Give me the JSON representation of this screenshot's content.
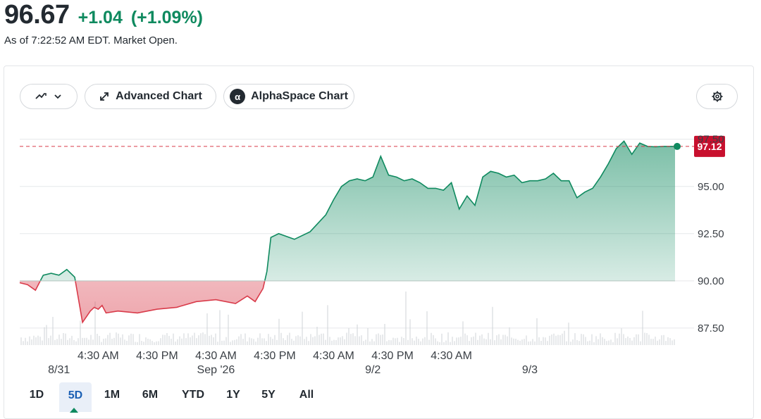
{
  "quote": {
    "price": "96.67",
    "change": "+1.04",
    "change_pct": "(+1.09%)",
    "as_of": "As of 7:22:52 AM EDT. Market Open."
  },
  "toolbar": {
    "chart_type_icon": "chart-type-icon",
    "advanced_label": "Advanced Chart",
    "alpha_label": "AlphaSpace Chart",
    "alpha_logo": "α",
    "settings_icon": "gear-icon"
  },
  "colors": {
    "up": "#0f8a5f",
    "down": "#d93b4a",
    "marker_bg": "#c8102e",
    "grid": "#e6e8ea"
  },
  "ranges": [
    "1D",
    "5D",
    "1M",
    "6M",
    "YTD",
    "1Y",
    "5Y",
    "All"
  ],
  "active_range": "5D",
  "chart_data": {
    "type": "area",
    "previous_close": 90.0,
    "current_marker": "97.12",
    "y_ticks": [
      "95.00",
      "92.50",
      "90.00",
      "87.50"
    ],
    "y_tick_values": [
      95.0,
      92.5,
      90.0,
      87.5
    ],
    "y_partial_label": "97.50",
    "ylim": [
      86.6,
      97.9
    ],
    "x_tick_labels": [
      "4:30 AM",
      "4:30 PM",
      "4:30 AM",
      "4:30 PM",
      "4:30 AM",
      "4:30 PM",
      "4:30 AM"
    ],
    "x_tick_positions": [
      0.2,
      0.35,
      0.5,
      0.65,
      0.8,
      0.95,
      1.1
    ],
    "date_labels": [
      "8/31",
      "Sep '26",
      "9/2",
      "9/3"
    ],
    "date_positions": [
      0.1,
      0.5,
      0.9,
      1.3
    ],
    "x_max": 1.67,
    "series": [
      {
        "x": [
          0.0,
          0.02,
          0.04,
          0.05,
          0.06,
          0.08,
          0.1,
          0.12,
          0.14,
          0.16,
          0.18,
          0.19,
          0.2,
          0.21,
          0.22,
          0.25,
          0.3,
          0.35,
          0.4,
          0.45,
          0.5,
          0.55,
          0.58,
          0.6,
          0.62,
          0.63,
          0.64,
          0.66,
          0.7,
          0.74,
          0.78,
          0.8,
          0.82,
          0.84,
          0.86,
          0.88,
          0.9,
          0.92,
          0.94,
          0.96,
          0.98,
          1.0,
          1.02,
          1.04,
          1.06,
          1.08,
          1.1,
          1.12,
          1.14,
          1.16,
          1.18,
          1.2,
          1.22,
          1.24,
          1.26,
          1.28,
          1.3,
          1.32,
          1.34,
          1.36,
          1.38,
          1.4,
          1.42,
          1.44,
          1.46,
          1.48,
          1.5,
          1.52,
          1.54,
          1.56,
          1.58,
          1.6,
          1.62,
          1.64,
          1.65,
          1.67
        ],
        "y": [
          89.9,
          89.8,
          89.5,
          89.9,
          90.3,
          90.4,
          90.3,
          90.6,
          90.2,
          87.8,
          88.4,
          88.6,
          88.5,
          88.7,
          88.3,
          88.4,
          88.3,
          88.5,
          88.6,
          88.9,
          89.0,
          88.8,
          89.2,
          88.9,
          89.6,
          90.5,
          92.3,
          92.5,
          92.2,
          92.6,
          93.5,
          94.3,
          95.0,
          95.3,
          95.4,
          95.3,
          95.5,
          96.6,
          95.6,
          95.5,
          95.3,
          95.4,
          95.2,
          94.9,
          94.9,
          94.8,
          95.2,
          93.8,
          94.5,
          94.0,
          95.5,
          95.8,
          95.7,
          95.5,
          95.6,
          95.2,
          95.3,
          95.3,
          95.4,
          95.7,
          95.3,
          95.3,
          94.4,
          94.7,
          94.9,
          95.5,
          96.2,
          97.0,
          97.4,
          96.7,
          97.3,
          97.12,
          97.1,
          97.12,
          97.12,
          97.12
        ]
      }
    ]
  }
}
